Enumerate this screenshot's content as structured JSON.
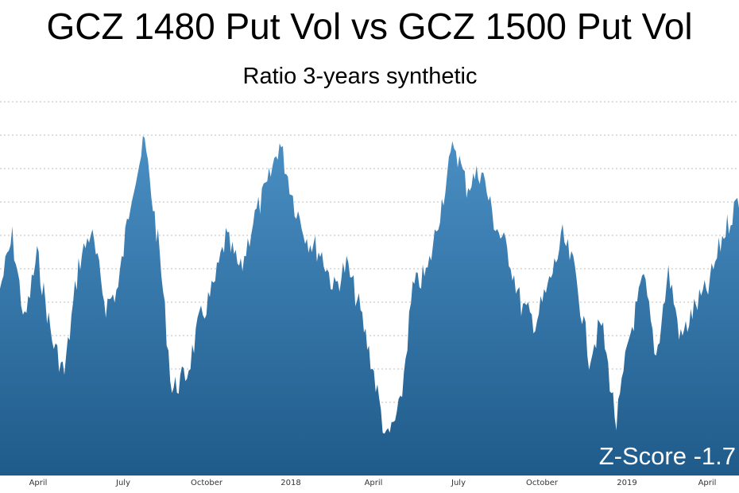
{
  "colors": {
    "area_top": "#4a8fc4",
    "area_bottom": "#1f5b8a",
    "grid": "#bdbdbd",
    "annotation": "#ffffff"
  },
  "chart_data": {
    "type": "area",
    "title": "GCZ 1480 Put Vol vs GCZ 1500 Put Vol",
    "subtitle": "Ratio 3-years synthetic",
    "xlabel": "",
    "ylabel": "",
    "grid": true,
    "legend": "none",
    "annotation": "Z-Score -1.7",
    "x_ticks": [
      "April",
      "July",
      "October",
      "2018",
      "April",
      "July",
      "October",
      "2019",
      "April"
    ],
    "x_range": [
      "2017-02-01",
      "2019-05-20"
    ],
    "x": [
      "2017-02-01",
      "2017-02-15",
      "2017-03-01",
      "2017-03-15",
      "2017-04-01",
      "2017-04-15",
      "2017-05-01",
      "2017-05-15",
      "2017-06-01",
      "2017-06-15",
      "2017-07-01",
      "2017-07-15",
      "2017-08-01",
      "2017-08-15",
      "2017-09-01",
      "2017-09-15",
      "2017-10-01",
      "2017-10-15",
      "2017-11-01",
      "2017-11-15",
      "2017-12-01",
      "2017-12-15",
      "2018-01-01",
      "2018-01-15",
      "2018-02-01",
      "2018-02-15",
      "2018-03-01",
      "2018-03-15",
      "2018-04-01",
      "2018-04-15",
      "2018-05-01",
      "2018-05-15",
      "2018-06-01",
      "2018-06-15",
      "2018-07-01",
      "2018-07-15",
      "2018-08-01",
      "2018-08-15",
      "2018-09-01",
      "2018-09-15",
      "2018-10-01",
      "2018-10-15",
      "2018-11-01",
      "2018-11-15",
      "2018-12-01",
      "2018-12-15",
      "2019-01-01",
      "2019-01-15",
      "2019-02-01",
      "2019-02-15",
      "2019-03-01",
      "2019-03-15",
      "2019-04-01",
      "2019-04-15",
      "2019-05-01",
      "2019-05-20"
    ],
    "values": [
      0.55,
      0.7,
      0.45,
      0.65,
      0.4,
      0.3,
      0.62,
      0.72,
      0.5,
      0.55,
      0.85,
      0.98,
      0.65,
      0.25,
      0.3,
      0.45,
      0.55,
      0.7,
      0.6,
      0.75,
      0.85,
      0.98,
      0.8,
      0.7,
      0.65,
      0.55,
      0.62,
      0.5,
      0.3,
      0.1,
      0.2,
      0.55,
      0.6,
      0.78,
      0.98,
      0.85,
      0.9,
      0.75,
      0.65,
      0.5,
      0.45,
      0.55,
      0.7,
      0.6,
      0.35,
      0.45,
      0.15,
      0.4,
      0.58,
      0.35,
      0.6,
      0.4,
      0.5,
      0.55,
      0.7,
      0.82
    ],
    "ylim": [
      0,
      1.1
    ]
  }
}
